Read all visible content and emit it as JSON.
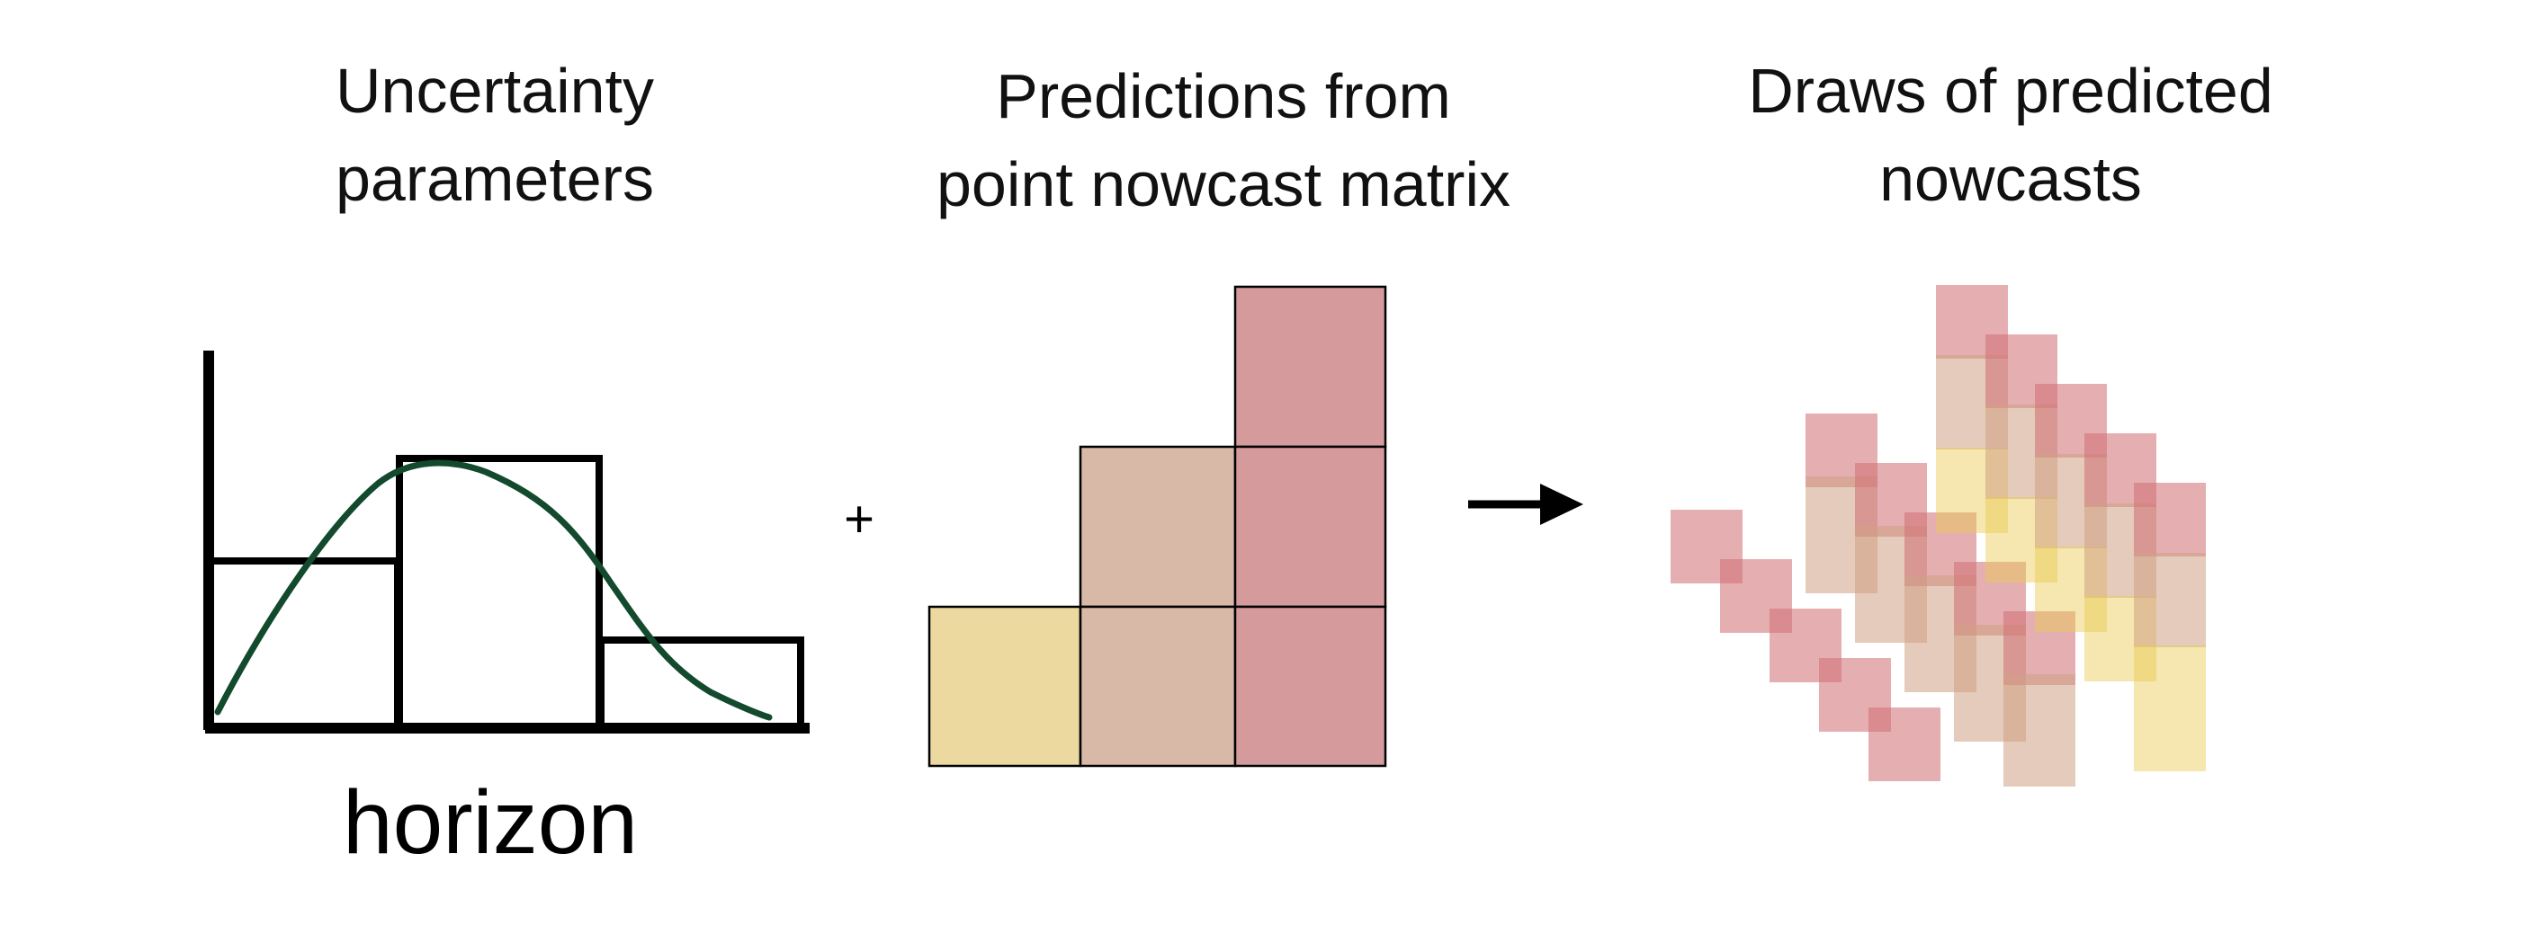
{
  "headings": {
    "uncertainty": [
      "Uncertainty",
      "parameters"
    ],
    "predictions": [
      "Predictions from",
      "point nowcast matrix"
    ],
    "draws": [
      "Draws of predicted",
      "nowcasts"
    ]
  },
  "axis_label": "horizon",
  "operator_symbol": "+",
  "colors": {
    "low": "#ecd9a0",
    "mid": "#d8b8a6",
    "high": "#d59a9c",
    "curve": "#134a2e",
    "stroke": "#000000",
    "draw_yellow": "#e9c94d",
    "draw_tan": "#cfa084",
    "draw_red": "#cf6d72"
  },
  "icons": {
    "arrow": "right-arrow-icon"
  }
}
